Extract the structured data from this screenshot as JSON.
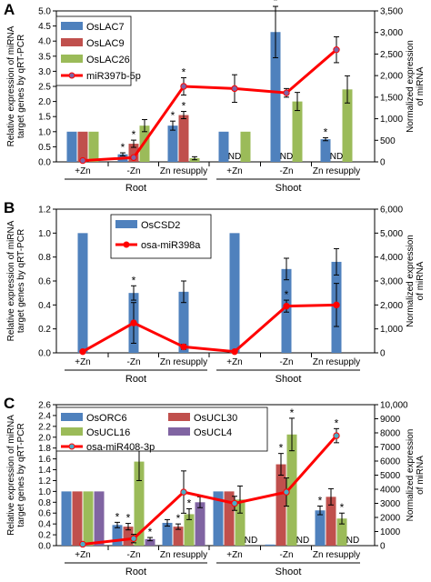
{
  "chart_data": [
    {
      "panel_label": "A",
      "type": "bar",
      "ylabel_left": [
        "Relative expression of miRNA",
        "target genes by qRT-PCR"
      ],
      "ylabel_right": [
        "Normalized expression",
        "of miRNA"
      ],
      "left_ticks": [
        "0.0",
        "0.5",
        "1.0",
        "1.5",
        "2.0",
        "2.5",
        "3.0",
        "3.5",
        "4.0",
        "4.5",
        "5.0"
      ],
      "right_ticks": [
        "0",
        "500",
        "1,000",
        "1,500",
        "2,000",
        "2,500",
        "3,000",
        "3,500"
      ],
      "ylim_left": [
        0,
        5
      ],
      "ylim_right": [
        0,
        3500
      ],
      "categories": [
        "+Zn",
        "-Zn",
        "Zn resupply",
        "+Zn",
        "-Zn",
        "Zn resupply"
      ],
      "groups": [
        {
          "label": "Root",
          "span": [
            0,
            2
          ]
        },
        {
          "label": "Shoot",
          "span": [
            3,
            5
          ]
        }
      ],
      "series": [
        {
          "name": "OsLAC7",
          "color": "#4f81bd",
          "values": [
            1.0,
            0.25,
            1.2,
            1.0,
            4.3,
            0.75
          ],
          "errors": [
            0,
            0.05,
            0.15,
            0,
            0.85,
            0.05
          ]
        },
        {
          "name": "OsLAC9",
          "color": "#c0504d",
          "values": [
            1.0,
            0.6,
            1.55,
            null,
            null,
            null
          ],
          "errors": [
            0,
            0.12,
            0.12,
            0,
            0,
            0
          ]
        },
        {
          "name": "OsLAC26",
          "color": "#9bbb59",
          "values": [
            1.0,
            1.2,
            0.12,
            1.0,
            2.0,
            2.4
          ],
          "errors": [
            0,
            0.2,
            0.05,
            0,
            0.3,
            0.45
          ]
        }
      ],
      "line": {
        "name": "miR397b-5p",
        "color": "#ff0000",
        "marker": "#8064a2",
        "values": [
          30,
          100,
          1750,
          1700,
          1600,
          2600
        ],
        "errors": [
          0,
          30,
          200,
          320,
          100,
          300
        ]
      },
      "annotations": {
        "stars": [
          {
            "series": "OsLAC7",
            "index": 1
          },
          {
            "series": "OsLAC9",
            "index": 1
          },
          {
            "series": "OsLAC7",
            "index": 2
          },
          {
            "series": "OsLAC9",
            "index": 2
          },
          {
            "series": "line",
            "index": 2
          },
          {
            "series": "OsLAC7",
            "index": 4
          },
          {
            "series": "OsLAC7",
            "index": 5
          }
        ],
        "nd": [
          {
            "series": "OsLAC9",
            "index": 3,
            "text": "ND"
          },
          {
            "series": "OsLAC9",
            "index": 4,
            "text": "ND"
          },
          {
            "series": "OsLAC9",
            "index": 5,
            "text": "ND"
          }
        ]
      },
      "legend_placement": "top-left"
    },
    {
      "panel_label": "B",
      "type": "bar",
      "ylabel_left": [
        "Relative expression of miRNA",
        "target genes by qRT-PCR"
      ],
      "ylabel_right": [
        "Normalized expression",
        "of miRNA"
      ],
      "left_ticks": [
        "0.0",
        "0.2",
        "0.4",
        "0.6",
        "0.8",
        "1.0",
        "1.2"
      ],
      "right_ticks": [
        "0",
        "1,000",
        "2,000",
        "3,000",
        "4,000",
        "5,000",
        "6,000"
      ],
      "ylim_left": [
        0,
        1.2
      ],
      "ylim_right": [
        0,
        6000
      ],
      "categories": [
        "+Zn",
        "-Zn",
        "Zn resupply",
        "+Zn",
        "-Zn",
        "Zn resupply"
      ],
      "groups": [
        {
          "label": "Root",
          "span": [
            0,
            2
          ]
        },
        {
          "label": "Shoot",
          "span": [
            3,
            5
          ]
        }
      ],
      "series": [
        {
          "name": "OsCSD2",
          "color": "#4f81bd",
          "values": [
            1.0,
            0.5,
            0.51,
            1.0,
            0.7,
            0.76
          ],
          "errors": [
            0,
            0.06,
            0.09,
            0,
            0.09,
            0.11
          ]
        }
      ],
      "line": {
        "name": "osa-miR398a",
        "color": "#ff0000",
        "marker": "#ff0000",
        "values": [
          50,
          1250,
          250,
          50,
          1950,
          2000
        ],
        "errors": [
          0,
          850,
          100,
          0,
          250,
          900
        ]
      },
      "annotations": {
        "stars": [
          {
            "series": "OsCSD2",
            "index": 1
          },
          {
            "series": "line",
            "index": 4
          }
        ],
        "nd": []
      },
      "legend_placement": "top-center"
    },
    {
      "panel_label": "C",
      "type": "bar",
      "ylabel_left": [
        "Relative expression of miRNA",
        "target genes by qRT-PCR"
      ],
      "ylabel_right": [
        "Normalized expression",
        "of miRNA"
      ],
      "left_ticks": [
        "0.0",
        "0.2",
        "0.4",
        "0.6",
        "0.8",
        "1.0",
        "1.2",
        "1.4",
        "1.6",
        "1.8",
        "2.0",
        "2.2",
        "2.4",
        "2.6"
      ],
      "right_ticks": [
        "0",
        "1000",
        "2000",
        "3000",
        "4000",
        "5000",
        "6000",
        "7000",
        "8000",
        "9000",
        "10,000"
      ],
      "ylim_left": [
        0,
        2.6
      ],
      "ylim_right": [
        0,
        10000
      ],
      "categories": [
        "+Zn",
        "-Zn",
        "Zn resupply",
        "+Zn",
        "-Zn",
        "Zn resupply"
      ],
      "groups": [
        {
          "label": "Root",
          "span": [
            0,
            2
          ]
        },
        {
          "label": "Shoot",
          "span": [
            3,
            5
          ]
        }
      ],
      "series": [
        {
          "name": "OsORC6",
          "color": "#4f81bd",
          "values": [
            1.0,
            0.38,
            0.42,
            1.0,
            0.02,
            0.65
          ],
          "errors": [
            0,
            0.05,
            0.06,
            0,
            0,
            0.08
          ]
        },
        {
          "name": "OsUCL30",
          "color": "#c0504d",
          "values": [
            1.0,
            0.35,
            0.35,
            1.0,
            1.5,
            0.9
          ],
          "errors": [
            0,
            0.06,
            0.05,
            0,
            0.2,
            0.15
          ]
        },
        {
          "name": "OsUCL16",
          "color": "#9bbb59",
          "values": [
            1.0,
            1.55,
            0.58,
            0.85,
            2.05,
            0.5
          ],
          "errors": [
            0,
            0.35,
            0.1,
            0.25,
            0.3,
            0.1
          ]
        },
        {
          "name": "OsUCL4",
          "color": "#8064a2",
          "values": [
            1.0,
            0.12,
            0.8,
            null,
            null,
            null
          ],
          "errors": [
            0,
            0.03,
            0.1,
            0,
            0,
            0
          ]
        }
      ],
      "line": {
        "name": "osa-miR408-3p",
        "color": "#ff0000",
        "marker": "#4bacc6",
        "values": [
          100,
          500,
          3800,
          3000,
          3800,
          7800
        ],
        "errors": [
          0,
          300,
          1500,
          500,
          1000,
          500
        ]
      },
      "annotations": {
        "stars": [
          {
            "series": "OsORC6",
            "index": 1
          },
          {
            "series": "OsUCL30",
            "index": 1
          },
          {
            "series": "OsUCL4",
            "index": 1
          },
          {
            "series": "OsUCL30",
            "index": 2
          },
          {
            "series": "OsUCL16",
            "index": 2
          },
          {
            "series": "OsUCL30",
            "index": 4
          },
          {
            "series": "OsUCL16",
            "index": 4
          },
          {
            "series": "OsORC6",
            "index": 5
          },
          {
            "series": "OsUCL16",
            "index": 5
          },
          {
            "series": "line",
            "index": 5
          }
        ],
        "nd": [
          {
            "series": "OsUCL4",
            "index": 3,
            "text": "ND"
          },
          {
            "series": "OsUCL4",
            "index": 4,
            "text": "ND"
          },
          {
            "series": "OsUCL4",
            "index": 5,
            "text": "ND"
          }
        ]
      },
      "legend_placement": "top-left-two-columns"
    }
  ]
}
